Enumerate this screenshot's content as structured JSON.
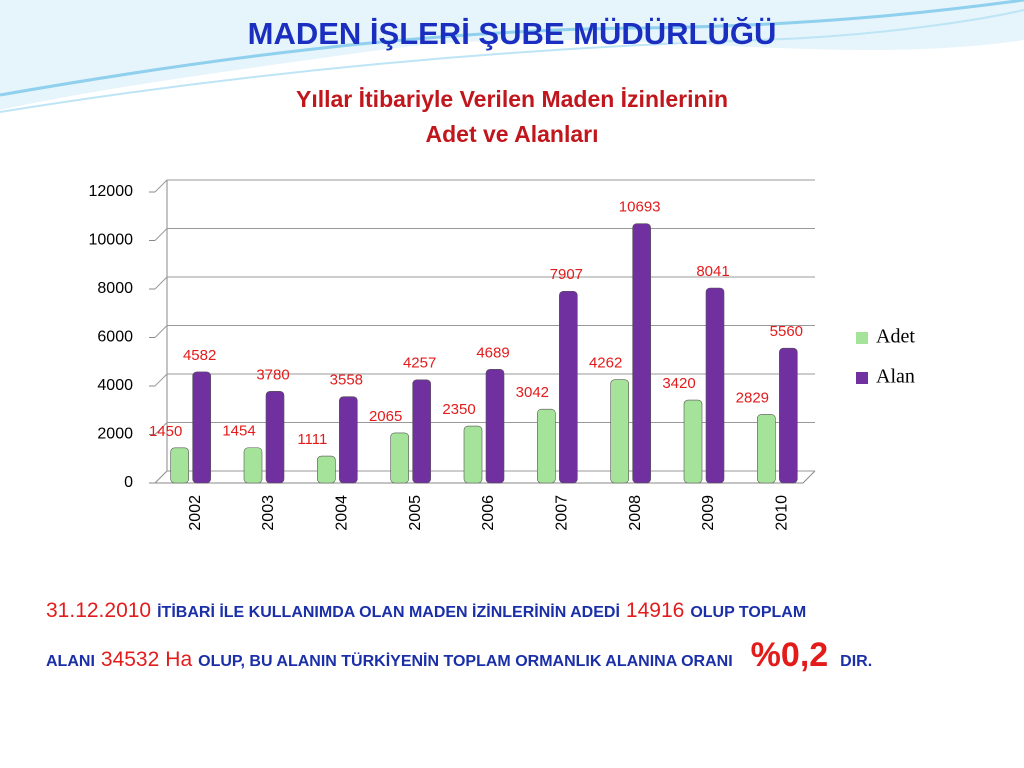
{
  "header": {
    "title": "MADEN İŞLERİ ŞUBE MÜDÜRLÜĞÜ"
  },
  "chart_data": {
    "type": "bar",
    "title": [
      "Yıllar İtibariyle Verilen Maden İzinlerinin",
      "Adet ve Alanları"
    ],
    "categories": [
      "2002",
      "2003",
      "2004",
      "2005",
      "2006",
      "2007",
      "2008",
      "2009",
      "2010"
    ],
    "series": [
      {
        "name": "Adet",
        "color": "#a6e39a",
        "values": [
          1450,
          1454,
          1111,
          2065,
          2350,
          3042,
          4262,
          3420,
          2829
        ]
      },
      {
        "name": "Alan",
        "color": "#7030a0",
        "values": [
          4582,
          3780,
          3558,
          4257,
          4689,
          7907,
          10693,
          8041,
          5560
        ]
      }
    ],
    "label_color": "#e31b1b",
    "ylim": [
      0,
      12000
    ],
    "yticks": [
      0,
      2000,
      4000,
      6000,
      8000,
      10000,
      12000
    ],
    "grid": true,
    "legend": "right"
  },
  "footnote": {
    "segments": [
      {
        "text": "31.12.2010",
        "color": "#e31b1b"
      },
      {
        "text": "İTİBARİ İLE KULLANIMDA OLAN MADEN İZİNLERİNİN ADEDİ",
        "color": "#1a2fa8"
      },
      {
        "text": "14916",
        "color": "#e31b1b"
      },
      {
        "text": "OLUP TOPLAM ALANI",
        "color": "#1a2fa8"
      },
      {
        "text": "34532",
        "color": "#e31b1b"
      },
      {
        "text": "Ha",
        "color": "#e31b1b"
      },
      {
        "text": "OLUP, BU ALANIN TÜRKİYENİN TOPLAM ORMANLIK ALANINA ORANI",
        "color": "#1a2fa8"
      },
      {
        "text": "%0,2",
        "color": "#e31b1b"
      },
      {
        "text": "DIR.",
        "color": "#1a2fa8"
      }
    ]
  }
}
